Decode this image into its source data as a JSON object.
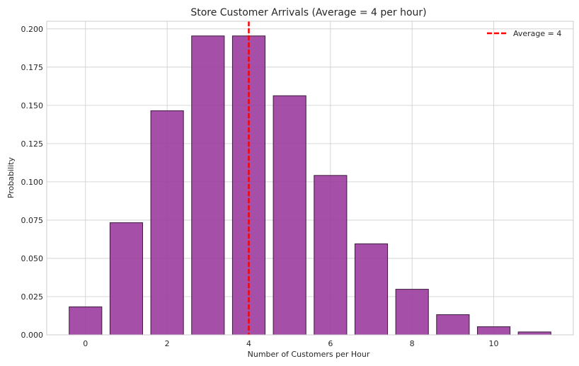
{
  "chart_data": {
    "type": "bar",
    "title": "Store Customer Arrivals (Average = 4 per hour)",
    "xlabel": "Number of Customers per Hour",
    "ylabel": "Probability",
    "categories": [
      0,
      1,
      2,
      3,
      4,
      5,
      6,
      7,
      8,
      9,
      10,
      11
    ],
    "values": [
      0.0183,
      0.0733,
      0.1465,
      0.1954,
      0.1954,
      0.1563,
      0.1042,
      0.0595,
      0.0298,
      0.0132,
      0.0053,
      0.0019
    ],
    "xlim": [
      -0.95,
      11.95
    ],
    "ylim": [
      0,
      0.205
    ],
    "xticks": [
      0,
      2,
      4,
      6,
      8,
      10
    ],
    "xtick_labels": [
      "0",
      "2",
      "4",
      "6",
      "8",
      "10"
    ],
    "yticks": [
      0,
      0.025,
      0.05,
      0.075,
      0.1,
      0.125,
      0.15,
      0.175,
      0.2
    ],
    "ytick_labels": [
      "0.000",
      "0.025",
      "0.050",
      "0.075",
      "0.100",
      "0.125",
      "0.150",
      "0.175",
      "0.200"
    ],
    "bar_color": "#9b3c9f",
    "bar_edge_color": "#3a1a3c",
    "reference_line": {
      "x": 4,
      "label": "Average = 4",
      "color": "#ff0000",
      "style": "dashed"
    },
    "grid": true,
    "legend_position": "top-right"
  }
}
